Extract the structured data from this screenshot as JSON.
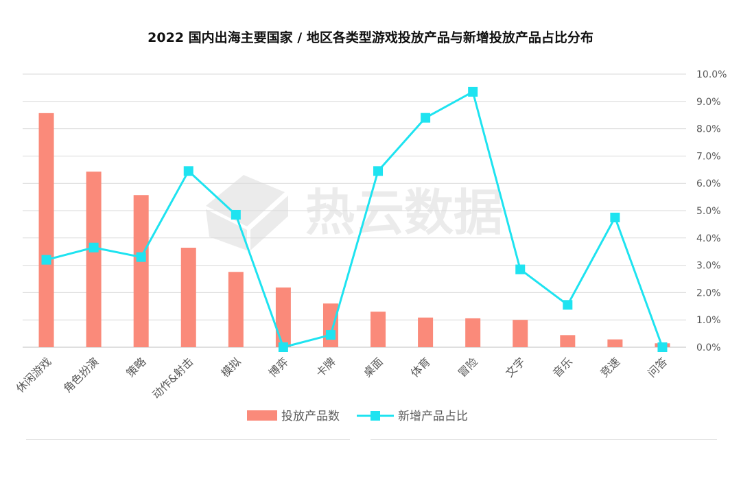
{
  "chart_data": {
    "type": "bar",
    "title": "2022 国内出海主要国家 / 地区各类型游戏投放产品与新增投放产品占比分布",
    "categories": [
      "休闲游戏",
      "角色扮演",
      "策略",
      "动作&射击",
      "模拟",
      "博弈",
      "卡牌",
      "桌面",
      "体育",
      "冒险",
      "文字",
      "音乐",
      "竞速",
      "问答"
    ],
    "series": [
      {
        "name": "投放产品数",
        "kind": "bar",
        "axis": "left",
        "color": "#fa8a7a",
        "values": [
          6000,
          4500,
          3900,
          2550,
          1930,
          1530,
          1120,
          910,
          760,
          740,
          700,
          310,
          200,
          100
        ]
      },
      {
        "name": "新增产品占比",
        "kind": "line",
        "axis": "right",
        "color": "#1ee3f0",
        "values": [
          3.2,
          3.65,
          3.3,
          6.45,
          4.85,
          0.0,
          0.45,
          6.45,
          8.4,
          9.35,
          2.85,
          1.55,
          4.75,
          0.0
        ]
      }
    ],
    "y_left": {
      "min": 0,
      "max": 7000,
      "tick_labels_shown": false
    },
    "y_right": {
      "min": 0,
      "max": 10,
      "ticks": [
        "0.0%",
        "1.0%",
        "2.0%",
        "3.0%",
        "4.0%",
        "5.0%",
        "6.0%",
        "7.0%",
        "8.0%",
        "9.0%",
        "10.0%"
      ]
    },
    "grid": true,
    "legend_position": "bottom",
    "watermark": "热云数据"
  }
}
